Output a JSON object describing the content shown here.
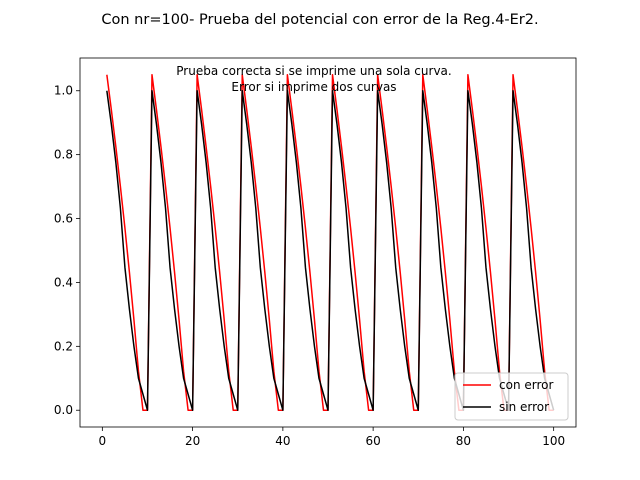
{
  "chart_data": {
    "type": "line",
    "title": "Con nr=100- Prueba del potencial con error de la Reg.4-Er2.",
    "xlabel": "",
    "ylabel": "",
    "xlim": [
      -4.95,
      104.95
    ],
    "ylim": [
      -0.0525,
      1.1025
    ],
    "xticks": [
      0,
      20,
      40,
      60,
      80,
      100
    ],
    "yticks": [
      0.0,
      0.2,
      0.4,
      0.6,
      0.8,
      1.0
    ],
    "xtick_labels": [
      "0",
      "20",
      "40",
      "60",
      "80",
      "100"
    ],
    "ytick_labels": [
      "0.0",
      "0.2",
      "0.4",
      "0.6",
      "0.8",
      "1.0"
    ],
    "grid": false,
    "legend_position": "lower-right",
    "annotations": [
      "Prueba correcta si se imprime una sola curva.",
      "Error si imprime dos curvas"
    ],
    "series": [
      {
        "name": "con error",
        "color": "#ff0000",
        "x": [
          1,
          2,
          3,
          4,
          5,
          6,
          7,
          8,
          9,
          10,
          11,
          12,
          13,
          14,
          15,
          16,
          17,
          18,
          19,
          20,
          21,
          22,
          23,
          24,
          25,
          26,
          27,
          28,
          29,
          30,
          31,
          32,
          33,
          34,
          35,
          36,
          37,
          38,
          39,
          40,
          41,
          42,
          43,
          44,
          45,
          46,
          47,
          48,
          49,
          50,
          51,
          52,
          53,
          54,
          55,
          56,
          57,
          58,
          59,
          60,
          61,
          62,
          63,
          64,
          65,
          66,
          67,
          68,
          69,
          70,
          71,
          72,
          73,
          74,
          75,
          76,
          77,
          78,
          79,
          80,
          81,
          82,
          83,
          84,
          85,
          86,
          87,
          88,
          89,
          90,
          91,
          92,
          93,
          94,
          95,
          96,
          97,
          98,
          99,
          100
        ],
        "y": [
          1.05,
          0.9397,
          0.8235,
          0.7007,
          0.5705,
          0.4317,
          0.283,
          0.1225,
          0.0,
          0.0,
          1.05,
          0.9397,
          0.8235,
          0.7007,
          0.5705,
          0.4317,
          0.283,
          0.1225,
          0.0,
          0.0,
          1.05,
          0.9397,
          0.8235,
          0.7007,
          0.5705,
          0.4317,
          0.283,
          0.1225,
          0.0,
          0.0,
          1.05,
          0.9397,
          0.8235,
          0.7007,
          0.5705,
          0.4317,
          0.283,
          0.1225,
          0.0,
          0.0,
          1.05,
          0.9397,
          0.8235,
          0.7007,
          0.5705,
          0.4317,
          0.283,
          0.1225,
          0.0,
          0.0,
          1.05,
          0.9397,
          0.8235,
          0.7007,
          0.5705,
          0.4317,
          0.283,
          0.1225,
          0.0,
          0.0,
          1.05,
          0.9397,
          0.8235,
          0.7007,
          0.5705,
          0.4317,
          0.283,
          0.1225,
          0.0,
          0.0,
          1.05,
          0.9397,
          0.8235,
          0.7007,
          0.5705,
          0.4317,
          0.283,
          0.1225,
          0.0,
          0.0,
          1.05,
          0.9397,
          0.8235,
          0.7007,
          0.5705,
          0.4317,
          0.283,
          0.1225,
          0.0,
          0.0,
          1.05,
          0.9397,
          0.8235,
          0.7007,
          0.5705,
          0.4317,
          0.283,
          0.1225,
          0.0,
          0.0
        ]
      },
      {
        "name": "sin error",
        "color": "#000000",
        "x": [
          1,
          2,
          3,
          4,
          5,
          6,
          7,
          8,
          9,
          10,
          11,
          12,
          13,
          14,
          15,
          16,
          17,
          18,
          19,
          20,
          21,
          22,
          23,
          24,
          25,
          26,
          27,
          28,
          29,
          30,
          31,
          32,
          33,
          34,
          35,
          36,
          37,
          38,
          39,
          40,
          41,
          42,
          43,
          44,
          45,
          46,
          47,
          48,
          49,
          50,
          51,
          52,
          53,
          54,
          55,
          56,
          57,
          58,
          59,
          60,
          61,
          62,
          63,
          64,
          65,
          66,
          67,
          68,
          69,
          70,
          71,
          72,
          73,
          74,
          75,
          76,
          77,
          78,
          79,
          80,
          81,
          82,
          83,
          84,
          85,
          86,
          87,
          88,
          89,
          90,
          91,
          92,
          93,
          94,
          95,
          96,
          97,
          98,
          99,
          100
        ],
        "y": [
          1.0,
          0.8944,
          0.7746,
          0.6325,
          0.4472,
          0.3162,
          0.2,
          0.1,
          0.05,
          0.0,
          1.0,
          0.8944,
          0.7746,
          0.6325,
          0.4472,
          0.3162,
          0.2,
          0.1,
          0.05,
          0.0,
          1.0,
          0.8944,
          0.7746,
          0.6325,
          0.4472,
          0.3162,
          0.2,
          0.1,
          0.05,
          0.0,
          1.0,
          0.8944,
          0.7746,
          0.6325,
          0.4472,
          0.3162,
          0.2,
          0.1,
          0.05,
          0.0,
          1.0,
          0.8944,
          0.7746,
          0.6325,
          0.4472,
          0.3162,
          0.2,
          0.1,
          0.05,
          0.0,
          1.0,
          0.8944,
          0.7746,
          0.6325,
          0.4472,
          0.3162,
          0.2,
          0.1,
          0.05,
          0.0,
          1.0,
          0.8944,
          0.7746,
          0.6325,
          0.4472,
          0.3162,
          0.2,
          0.1,
          0.05,
          0.0,
          1.0,
          0.8944,
          0.7746,
          0.6325,
          0.4472,
          0.3162,
          0.2,
          0.1,
          0.05,
          0.0,
          1.0,
          0.8944,
          0.7746,
          0.6325,
          0.4472,
          0.3162,
          0.2,
          0.1,
          0.05,
          0.0,
          1.0,
          0.8944,
          0.7746,
          0.6325,
          0.4472,
          0.3162,
          0.2,
          0.1,
          0.05,
          0.0
        ]
      }
    ]
  }
}
